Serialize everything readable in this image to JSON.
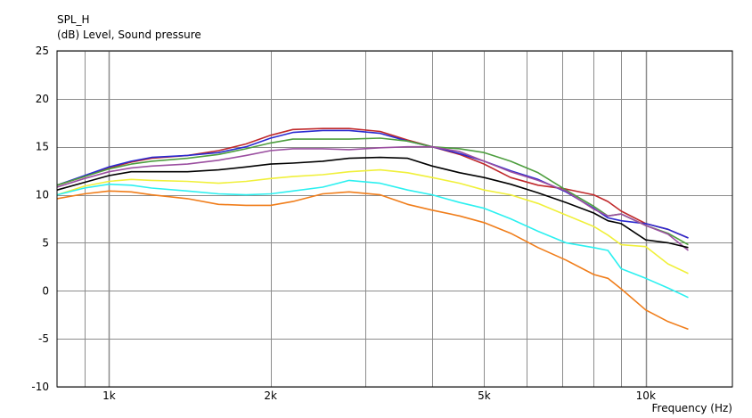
{
  "chart_data": {
    "type": "line",
    "title": "SPL_H",
    "ylabel": "(dB)  Level, Sound pressure",
    "xlabel": "Frequency  (Hz)",
    "x_scale": "log",
    "xlim": [
      800,
      14500
    ],
    "ylim": [
      -10,
      25
    ],
    "y_ticks": [
      25,
      20,
      15,
      10,
      5,
      0,
      -5,
      -10
    ],
    "x_tick_labels": [
      {
        "value": 1000,
        "label": "1k"
      },
      {
        "value": 2000,
        "label": "2k"
      },
      {
        "value": 5000,
        "label": "5k"
      },
      {
        "value": 10000,
        "label": "10k"
      }
    ],
    "grid": true,
    "x": [
      800,
      900,
      1000,
      1100,
      1200,
      1400,
      1600,
      1800,
      2000,
      2200,
      2500,
      2800,
      3200,
      3600,
      4000,
      4500,
      5000,
      5600,
      6300,
      7100,
      8000,
      8500,
      9000,
      10000,
      11000,
      12000
    ],
    "series": [
      {
        "color": "#c0292b",
        "values": [
          11.0,
          11.9,
          12.8,
          13.4,
          13.8,
          14.1,
          14.6,
          15.3,
          16.2,
          16.8,
          16.9,
          16.9,
          16.6,
          15.7,
          15.0,
          14.2,
          13.2,
          11.8,
          11.0,
          10.6,
          10.0,
          9.3,
          8.3,
          7.0,
          6.4,
          5.5
        ]
      },
      {
        "color": "#2a2ad0",
        "values": [
          11.0,
          12.0,
          12.9,
          13.5,
          13.9,
          14.1,
          14.4,
          15.0,
          15.9,
          16.5,
          16.7,
          16.7,
          16.4,
          15.6,
          15.0,
          14.3,
          13.5,
          12.5,
          11.6,
          10.3,
          8.6,
          7.6,
          7.3,
          7.0,
          6.4,
          5.5
        ]
      },
      {
        "color": "#4d9e3e",
        "values": [
          11.0,
          11.9,
          12.7,
          13.2,
          13.5,
          13.8,
          14.2,
          14.8,
          15.4,
          15.8,
          15.8,
          15.8,
          15.9,
          15.6,
          15.0,
          14.8,
          14.4,
          13.5,
          12.3,
          10.5,
          8.8,
          7.8,
          8.0,
          6.8,
          6.0,
          4.8
        ]
      },
      {
        "color": "#9b4fa0",
        "values": [
          10.8,
          11.7,
          12.4,
          12.8,
          13.0,
          13.2,
          13.6,
          14.1,
          14.6,
          14.8,
          14.8,
          14.7,
          14.9,
          15.0,
          15.0,
          14.5,
          13.5,
          12.4,
          11.5,
          10.4,
          8.5,
          7.8,
          8.0,
          6.8,
          5.9,
          4.2
        ]
      },
      {
        "color": "#000000",
        "values": [
          10.5,
          11.3,
          12.0,
          12.4,
          12.4,
          12.4,
          12.6,
          12.9,
          13.2,
          13.3,
          13.5,
          13.8,
          13.9,
          13.8,
          13.0,
          12.3,
          11.8,
          11.1,
          10.2,
          9.2,
          8.1,
          7.3,
          7.0,
          5.3,
          5.0,
          4.5
        ]
      },
      {
        "color": "#f0f03a",
        "values": [
          10.0,
          10.9,
          11.4,
          11.6,
          11.5,
          11.4,
          11.2,
          11.4,
          11.7,
          11.9,
          12.1,
          12.4,
          12.6,
          12.3,
          11.8,
          11.2,
          10.5,
          10.0,
          9.1,
          7.9,
          6.7,
          5.8,
          4.8,
          4.6,
          2.8,
          1.8
        ]
      },
      {
        "color": "#2cf0f0",
        "values": [
          10.0,
          10.7,
          11.1,
          11.0,
          10.7,
          10.4,
          10.1,
          10.0,
          10.1,
          10.4,
          10.8,
          11.5,
          11.2,
          10.5,
          10.0,
          9.2,
          8.6,
          7.5,
          6.2,
          5.0,
          4.5,
          4.2,
          2.3,
          1.3,
          0.3,
          -0.7
        ]
      },
      {
        "color": "#f07d1a",
        "values": [
          9.6,
          10.1,
          10.4,
          10.3,
          10.0,
          9.6,
          9.0,
          8.9,
          8.9,
          9.3,
          10.1,
          10.3,
          10.0,
          9.0,
          8.4,
          7.8,
          7.1,
          6.0,
          4.5,
          3.2,
          1.7,
          1.3,
          0.2,
          -2.0,
          -3.2,
          -4.0
        ]
      }
    ]
  }
}
